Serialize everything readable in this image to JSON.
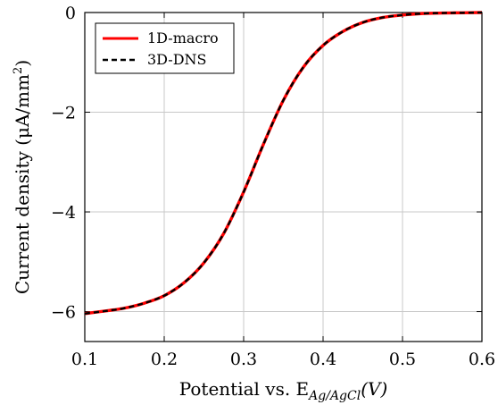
{
  "chart_data": {
    "type": "line",
    "xlabel": "Potential vs. E",
    "xlabel_sub": "Ag/AgCl",
    "xlabel_unit": "(V)",
    "ylabel": "Current density (μA/mm",
    "ylabel_sup": "2",
    "ylabel_end": ")",
    "xlim": [
      0.1,
      0.6
    ],
    "ylim": [
      -6.6,
      0
    ],
    "xticks": [
      0.1,
      0.2,
      0.3,
      0.4,
      0.5,
      0.6
    ],
    "xtick_labels": [
      "0.1",
      "0.2",
      "0.3",
      "0.4",
      "0.5",
      "0.6"
    ],
    "yticks": [
      -6,
      -4,
      -2,
      0
    ],
    "ytick_labels": [
      "−6",
      "−4",
      "−2",
      "0"
    ],
    "grid": true,
    "legend": "top-left",
    "series": [
      {
        "name": "1D-macro",
        "color": "#ff0000",
        "style": "solid",
        "x": [
          0.1,
          0.125,
          0.15,
          0.175,
          0.2,
          0.225,
          0.25,
          0.275,
          0.3,
          0.325,
          0.35,
          0.375,
          0.4,
          0.425,
          0.45,
          0.475,
          0.5,
          0.525,
          0.55,
          0.575,
          0.6
        ],
        "y": [
          -6.04,
          -5.99,
          -5.93,
          -5.83,
          -5.68,
          -5.42,
          -5.02,
          -4.43,
          -3.6,
          -2.64,
          -1.76,
          -1.1,
          -0.66,
          -0.38,
          -0.2,
          -0.1,
          -0.05,
          -0.02,
          -0.01,
          -0.005,
          0.0
        ]
      },
      {
        "name": "3D-DNS",
        "color": "#000000",
        "style": "dashed",
        "x": [
          0.1,
          0.125,
          0.15,
          0.175,
          0.2,
          0.225,
          0.25,
          0.275,
          0.3,
          0.325,
          0.35,
          0.375,
          0.4,
          0.425,
          0.45,
          0.475,
          0.5,
          0.525,
          0.55,
          0.575,
          0.6
        ],
        "y": [
          -6.04,
          -5.99,
          -5.93,
          -5.83,
          -5.68,
          -5.42,
          -5.02,
          -4.43,
          -3.6,
          -2.64,
          -1.76,
          -1.1,
          -0.66,
          -0.38,
          -0.2,
          -0.1,
          -0.05,
          -0.02,
          -0.01,
          -0.005,
          0.0
        ]
      }
    ]
  }
}
